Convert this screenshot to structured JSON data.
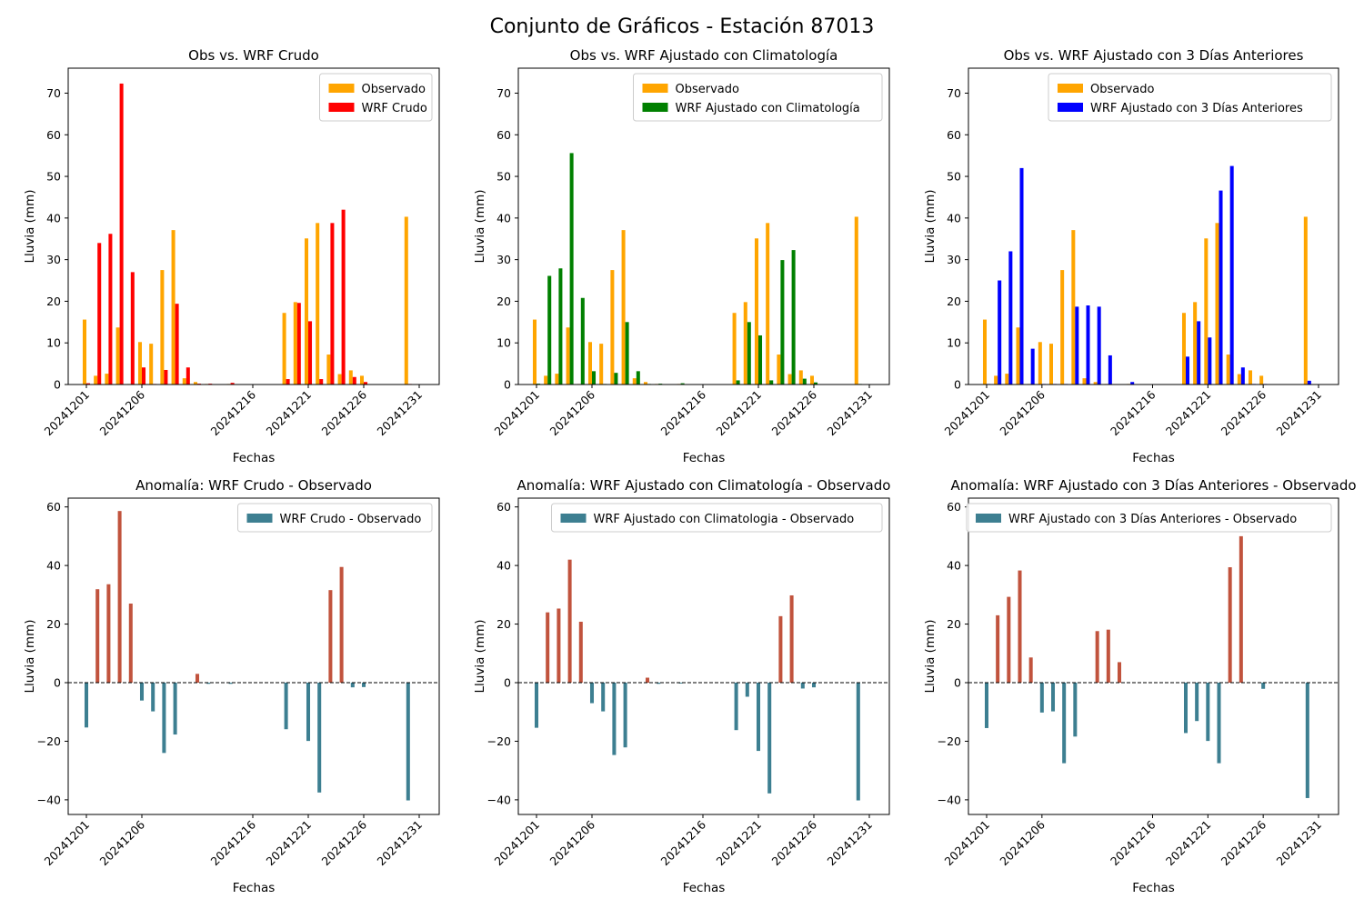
{
  "suptitle": "Conjunto de Gráficos - Estación 87013",
  "colors": {
    "observed": "#ffa500",
    "wrf_raw": "#ff0000",
    "wrf_clim": "#008000",
    "wrf_3days": "#0000ff",
    "anomaly_positive": "#c1533d",
    "anomaly_negative": "#3d7f91",
    "anomaly_legend": "#3d7f91"
  },
  "chart_data": [
    {
      "type": "bar",
      "title": "Obs vs. WRF Crudo",
      "xlabel": "Fechas",
      "ylabel": "Lluvia (mm)",
      "ylim": [
        0,
        76
      ],
      "yticks": [
        0,
        10,
        20,
        30,
        40,
        50,
        60,
        70
      ],
      "xtick_labels": [
        "20241201",
        "20241206",
        "20241216",
        "20241221",
        "20241226",
        "20241231"
      ],
      "legend_position": "top-right",
      "x": [
        "20241201",
        "20241202",
        "20241203",
        "20241204",
        "20241205",
        "20241206",
        "20241207",
        "20241208",
        "20241209",
        "20241210",
        "20241211",
        "20241212",
        "20241214",
        "20241219",
        "20241220",
        "20241221",
        "20241222",
        "20241223",
        "20241224",
        "20241225",
        "20241226",
        "20241230"
      ],
      "series": [
        {
          "name": "Observado",
          "values": [
            15.6,
            2.1,
            2.6,
            13.7,
            0.0,
            10.2,
            9.8,
            27.5,
            37.1,
            1.5,
            0.6,
            0.0,
            0.0,
            17.2,
            19.8,
            35.1,
            38.8,
            7.2,
            2.5,
            3.4,
            2.1,
            40.3
          ]
        },
        {
          "name": "WRF Crudo",
          "values": [
            0.3,
            34.0,
            36.2,
            72.3,
            27.0,
            4.1,
            0.0,
            3.5,
            19.4,
            4.1,
            0.2,
            0.2,
            0.4,
            1.3,
            19.6,
            15.2,
            1.3,
            38.8,
            42.0,
            1.8,
            0.6,
            0.1
          ]
        }
      ]
    },
    {
      "type": "bar",
      "title": "Obs vs. WRF Ajustado con Climatología",
      "xlabel": "Fechas",
      "ylabel": "Lluvia (mm)",
      "ylim": [
        0,
        76
      ],
      "yticks": [
        0,
        10,
        20,
        30,
        40,
        50,
        60,
        70
      ],
      "xtick_labels": [
        "20241201",
        "20241206",
        "20241216",
        "20241221",
        "20241226",
        "20241231"
      ],
      "legend_position": "top-right",
      "x": [
        "20241201",
        "20241202",
        "20241203",
        "20241204",
        "20241205",
        "20241206",
        "20241207",
        "20241208",
        "20241209",
        "20241210",
        "20241211",
        "20241212",
        "20241214",
        "20241219",
        "20241220",
        "20241221",
        "20241222",
        "20241223",
        "20241224",
        "20241225",
        "20241226",
        "20241230"
      ],
      "series": [
        {
          "name": "Observado",
          "values": [
            15.6,
            2.1,
            2.6,
            13.7,
            0.0,
            10.2,
            9.8,
            27.5,
            37.1,
            1.5,
            0.6,
            0.0,
            0.0,
            17.2,
            19.8,
            35.1,
            38.8,
            7.2,
            2.5,
            3.4,
            2.1,
            40.3
          ]
        },
        {
          "name": "WRF Ajustado con Climatología",
          "values": [
            0.2,
            26.1,
            27.9,
            55.6,
            20.8,
            3.2,
            0.0,
            2.8,
            15.0,
            3.2,
            0.1,
            0.2,
            0.3,
            1.0,
            15.0,
            11.8,
            1.0,
            29.9,
            32.3,
            1.4,
            0.5,
            0.1
          ]
        }
      ]
    },
    {
      "type": "bar",
      "title": "Obs vs. WRF Ajustado con 3 Días Anteriores",
      "xlabel": "Fechas",
      "ylabel": "Lluvia (mm)",
      "ylim": [
        0,
        76
      ],
      "yticks": [
        0,
        10,
        20,
        30,
        40,
        50,
        60,
        70
      ],
      "xtick_labels": [
        "20241201",
        "20241206",
        "20241216",
        "20241221",
        "20241226",
        "20241231"
      ],
      "legend_position": "top-right",
      "x": [
        "20241201",
        "20241202",
        "20241203",
        "20241204",
        "20241205",
        "20241206",
        "20241207",
        "20241208",
        "20241209",
        "20241210",
        "20241211",
        "20241212",
        "20241214",
        "20241219",
        "20241220",
        "20241221",
        "20241222",
        "20241223",
        "20241224",
        "20241225",
        "20241226",
        "20241230"
      ],
      "series": [
        {
          "name": "Observado",
          "values": [
            15.6,
            2.1,
            2.6,
            13.7,
            0.0,
            10.2,
            9.8,
            27.5,
            37.1,
            1.5,
            0.6,
            0.0,
            0.0,
            17.2,
            19.8,
            35.1,
            38.8,
            7.2,
            2.5,
            3.4,
            2.1,
            40.3
          ]
        },
        {
          "name": "WRF Ajustado con 3 Días Anteriores",
          "values": [
            0.1,
            25.0,
            32.0,
            52.0,
            8.6,
            0.0,
            0.0,
            0.0,
            18.7,
            19.0,
            18.7,
            7.0,
            0.6,
            6.7,
            15.2,
            11.3,
            46.6,
            52.5,
            4.1,
            0.0,
            0.0,
            0.9
          ]
        }
      ]
    },
    {
      "type": "bar",
      "title": "Anomalía: WRF Crudo - Observado",
      "xlabel": "Fechas",
      "ylabel": "Lluvia (mm)",
      "ylim": [
        -45,
        63
      ],
      "yticks": [
        -40,
        -20,
        0,
        20,
        40,
        60
      ],
      "xtick_labels": [
        "20241201",
        "20241206",
        "20241216",
        "20241221",
        "20241226",
        "20241231"
      ],
      "legend_position": "top-right",
      "zero_line": "dashed",
      "x": [
        "20241201",
        "20241202",
        "20241203",
        "20241204",
        "20241205",
        "20241206",
        "20241207",
        "20241208",
        "20241209",
        "20241211",
        "20241212",
        "20241214",
        "20241219",
        "20241221",
        "20241222",
        "20241223",
        "20241224",
        "20241225",
        "20241226",
        "20241230"
      ],
      "series": [
        {
          "name": "WRF Crudo - Observado",
          "values": [
            -15.3,
            31.9,
            33.6,
            58.6,
            27.0,
            -6.1,
            -9.8,
            -24.0,
            -17.7,
            3.0,
            -0.4,
            -0.4,
            -15.9,
            -19.9,
            -37.5,
            31.6,
            39.5,
            -1.6,
            -1.5,
            -40.2
          ]
        }
      ]
    },
    {
      "type": "bar",
      "title": "Anomalía: WRF Ajustado con Climatología - Observado",
      "xlabel": "Fechas",
      "ylabel": "Lluvia (mm)",
      "ylim": [
        -45,
        63
      ],
      "yticks": [
        -40,
        -20,
        0,
        20,
        40,
        60
      ],
      "xtick_labels": [
        "20241201",
        "20241206",
        "20241216",
        "20241221",
        "20241226",
        "20241231"
      ],
      "legend_position": "top-right",
      "zero_line": "dashed",
      "x": [
        "20241201",
        "20241202",
        "20241203",
        "20241204",
        "20241205",
        "20241206",
        "20241207",
        "20241208",
        "20241209",
        "20241211",
        "20241212",
        "20241214",
        "20241219",
        "20241220",
        "20241221",
        "20241222",
        "20241223",
        "20241224",
        "20241225",
        "20241226",
        "20241230"
      ],
      "series": [
        {
          "name": "WRF Ajustado con Climatologia - Observado",
          "values": [
            -15.4,
            24.0,
            25.3,
            42.0,
            20.8,
            -7.0,
            -9.8,
            -24.7,
            -22.1,
            1.7,
            -0.4,
            -0.3,
            -16.2,
            -4.8,
            -23.3,
            -37.8,
            22.7,
            29.8,
            -2.0,
            -1.6,
            -40.2
          ]
        }
      ]
    },
    {
      "type": "bar",
      "title": "Anomalía: WRF Ajustado con 3 Días Anteriores - Observado",
      "xlabel": "Fechas",
      "ylabel": "Lluvia (mm)",
      "ylim": [
        -45,
        63
      ],
      "yticks": [
        -40,
        -20,
        0,
        20,
        40,
        60
      ],
      "xtick_labels": [
        "20241201",
        "20241206",
        "20241216",
        "20241221",
        "20241226",
        "20241231"
      ],
      "legend_position": "top-right",
      "zero_line": "dashed",
      "x": [
        "20241201",
        "20241202",
        "20241203",
        "20241204",
        "20241205",
        "20241206",
        "20241207",
        "20241208",
        "20241209",
        "20241211",
        "20241212",
        "20241213",
        "20241219",
        "20241220",
        "20241221",
        "20241222",
        "20241223",
        "20241224",
        "20241226",
        "20241230"
      ],
      "series": [
        {
          "name": "WRF Ajustado con 3 Días Anteriores - Observado",
          "values": [
            -15.5,
            23.0,
            29.3,
            38.3,
            8.6,
            -10.2,
            -9.8,
            -27.5,
            -18.4,
            17.6,
            18.1,
            7.0,
            -17.2,
            -13.1,
            -19.9,
            -27.5,
            39.4,
            50.0,
            -2.1,
            -39.4
          ]
        }
      ]
    }
  ]
}
